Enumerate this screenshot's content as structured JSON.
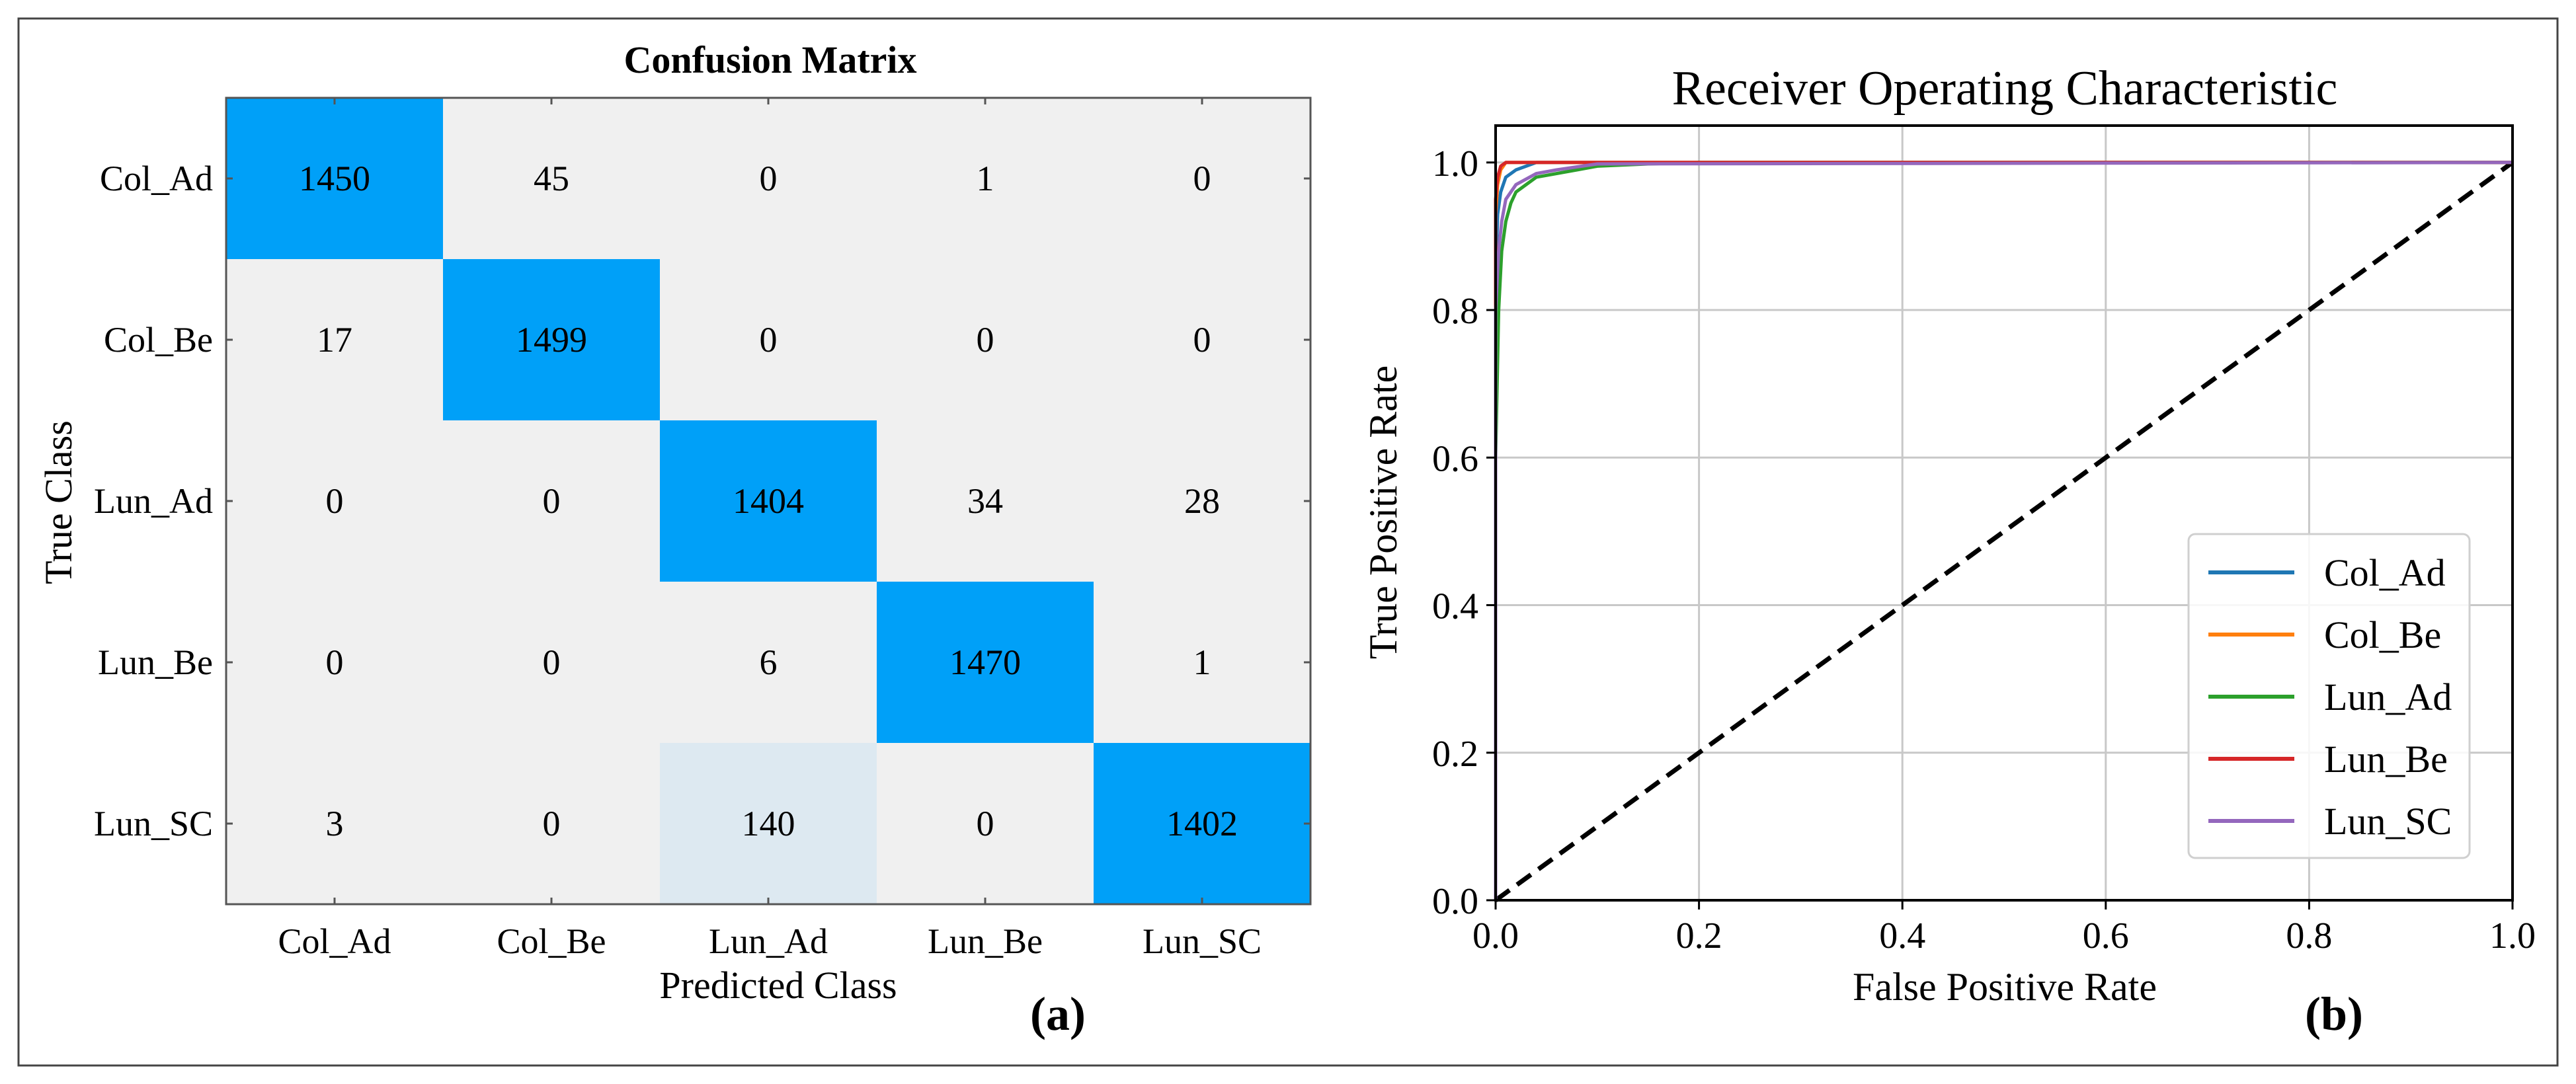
{
  "chart_data": [
    {
      "type": "heatmap",
      "panel_label": "(a)",
      "title": "Confusion Matrix",
      "xlabel": "Predicted Class",
      "ylabel": "True Class",
      "classes": [
        "Col_Ad",
        "Col_Be",
        "Lun_Ad",
        "Lun_Be",
        "Lun_SC"
      ],
      "matrix": [
        [
          1450,
          45,
          0,
          1,
          0
        ],
        [
          17,
          1499,
          0,
          0,
          0
        ],
        [
          0,
          0,
          1404,
          34,
          28
        ],
        [
          0,
          0,
          6,
          1470,
          1
        ],
        [
          3,
          0,
          140,
          0,
          1402
        ]
      ],
      "colors": {
        "high": "#00a0f8",
        "low": "#f0f0f0",
        "mid_low": "#dde9f1"
      }
    },
    {
      "type": "line",
      "panel_label": "(b)",
      "title": "Receiver Operating Characteristic",
      "xlabel": "False Positive Rate",
      "ylabel": "True Positive Rate",
      "xlim": [
        0,
        1
      ],
      "ylim": [
        0,
        1.05
      ],
      "xticks": [
        "0.0",
        "0.2",
        "0.4",
        "0.6",
        "0.8",
        "1.0"
      ],
      "yticks": [
        "0.0",
        "0.2",
        "0.4",
        "0.6",
        "0.8",
        "1.0"
      ],
      "grid": true,
      "legend_position": "bottom-right",
      "series": [
        {
          "name": "Col_Ad",
          "color": "#1f77b4",
          "x": [
            0,
            0,
            0.002,
            0.005,
            0.01,
            0.02,
            0.04,
            1
          ],
          "y": [
            0,
            0.85,
            0.93,
            0.96,
            0.98,
            0.99,
            1.0,
            1.0
          ]
        },
        {
          "name": "Col_Be",
          "color": "#ff7f0e",
          "x": [
            0,
            0,
            0.002,
            0.005,
            0.01,
            1
          ],
          "y": [
            0,
            0.93,
            0.97,
            0.99,
            1.0,
            1.0
          ]
        },
        {
          "name": "Lun_Ad",
          "color": "#2ca02c",
          "x": [
            0,
            0,
            0.003,
            0.006,
            0.01,
            0.015,
            0.02,
            0.03,
            0.04,
            0.06,
            0.08,
            0.1,
            0.15,
            0.2,
            1
          ],
          "y": [
            0,
            0.6,
            0.8,
            0.88,
            0.92,
            0.945,
            0.96,
            0.97,
            0.98,
            0.985,
            0.99,
            0.995,
            0.998,
            1.0,
            1.0
          ]
        },
        {
          "name": "Lun_Be",
          "color": "#d62728",
          "x": [
            0,
            0,
            0.002,
            0.005,
            0.01,
            1
          ],
          "y": [
            0,
            0.95,
            0.98,
            0.995,
            1.0,
            1.0
          ]
        },
        {
          "name": "Lun_SC",
          "color": "#9467bd",
          "x": [
            0,
            0,
            0.003,
            0.006,
            0.01,
            0.02,
            0.04,
            0.06,
            0.1,
            1
          ],
          "y": [
            0,
            0.8,
            0.88,
            0.92,
            0.95,
            0.97,
            0.985,
            0.99,
            0.998,
            1.0
          ]
        }
      ],
      "reference_line": {
        "x": [
          0,
          1
        ],
        "y": [
          0,
          1
        ],
        "color": "#000000",
        "style": "dashed"
      }
    }
  ]
}
